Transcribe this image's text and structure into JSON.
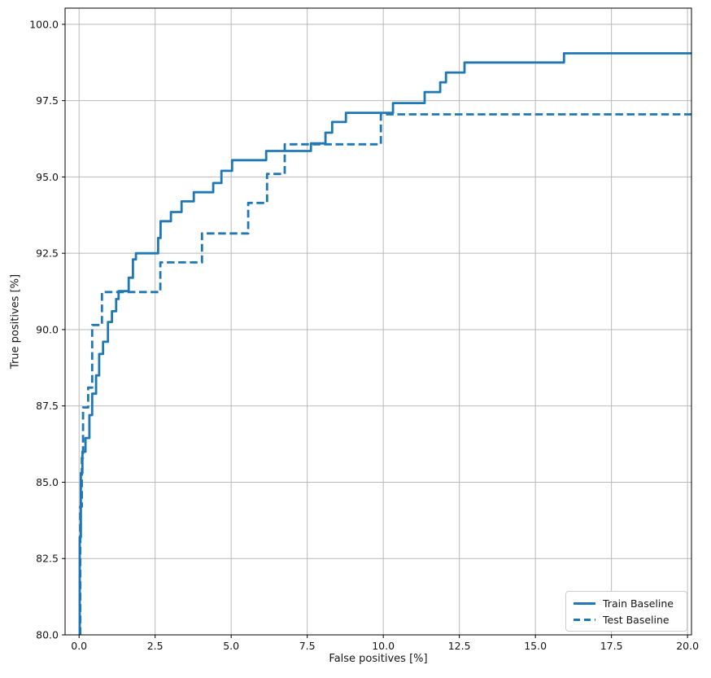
{
  "chart_data": {
    "type": "line",
    "subtype": "roc-step-curves",
    "title": "",
    "xlabel": "False positives [%]",
    "ylabel": "True positives [%]",
    "xlim": [
      -0.46,
      20.13
    ],
    "ylim": [
      80.0,
      100.53
    ],
    "x_ticks": [
      0.0,
      2.5,
      5.0,
      7.5,
      10.0,
      12.5,
      15.0,
      17.5,
      20.0
    ],
    "x_tick_labels": [
      "0.0",
      "2.5",
      "5.0",
      "7.5",
      "10.0",
      "12.5",
      "15.0",
      "17.5",
      "20.0"
    ],
    "y_ticks": [
      80.0,
      82.5,
      85.0,
      87.5,
      90.0,
      92.5,
      95.0,
      97.5,
      100.0
    ],
    "y_tick_labels": [
      "80.0",
      "82.5",
      "85.0",
      "87.5",
      "90.0",
      "92.5",
      "95.0",
      "97.5",
      "100.0"
    ],
    "grid": true,
    "grid_color": "#b9b9b9",
    "axis_color": "#000000",
    "line_color": "#1f77b4",
    "legend": {
      "position": "lower right",
      "entries": [
        {
          "label": "Train Baseline",
          "style": "solid",
          "color": "#1f77b4"
        },
        {
          "label": "Test Baseline",
          "style": "dashed",
          "color": "#1f77b4"
        }
      ]
    },
    "series": [
      {
        "name": "Train Baseline",
        "style": "solid",
        "color": "#1f77b4",
        "points": [
          [
            0.02,
            80.0
          ],
          [
            0.02,
            83.2
          ],
          [
            0.06,
            83.2
          ],
          [
            0.06,
            85.3
          ],
          [
            0.11,
            85.3
          ],
          [
            0.11,
            86.0
          ],
          [
            0.21,
            86.0
          ],
          [
            0.21,
            86.45
          ],
          [
            0.34,
            86.45
          ],
          [
            0.34,
            87.2
          ],
          [
            0.43,
            87.2
          ],
          [
            0.43,
            87.9
          ],
          [
            0.56,
            87.9
          ],
          [
            0.56,
            88.5
          ],
          [
            0.66,
            88.5
          ],
          [
            0.66,
            89.2
          ],
          [
            0.79,
            89.2
          ],
          [
            0.79,
            89.6
          ],
          [
            0.95,
            89.6
          ],
          [
            0.95,
            90.25
          ],
          [
            1.08,
            90.25
          ],
          [
            1.08,
            90.6
          ],
          [
            1.22,
            90.6
          ],
          [
            1.22,
            91.0
          ],
          [
            1.3,
            91.0
          ],
          [
            1.3,
            91.26
          ],
          [
            1.63,
            91.26
          ],
          [
            1.63,
            91.7
          ],
          [
            1.77,
            91.7
          ],
          [
            1.77,
            92.3
          ],
          [
            1.87,
            92.3
          ],
          [
            1.87,
            92.5
          ],
          [
            2.6,
            92.5
          ],
          [
            2.6,
            93.0
          ],
          [
            2.68,
            93.0
          ],
          [
            2.68,
            93.55
          ],
          [
            3.02,
            93.55
          ],
          [
            3.02,
            93.85
          ],
          [
            3.37,
            93.85
          ],
          [
            3.37,
            94.2
          ],
          [
            3.77,
            94.2
          ],
          [
            3.77,
            94.5
          ],
          [
            4.41,
            94.5
          ],
          [
            4.41,
            94.8
          ],
          [
            4.68,
            94.8
          ],
          [
            4.68,
            95.2
          ],
          [
            5.03,
            95.2
          ],
          [
            5.03,
            95.55
          ],
          [
            6.15,
            95.55
          ],
          [
            6.15,
            95.85
          ],
          [
            7.62,
            95.85
          ],
          [
            7.62,
            96.1
          ],
          [
            8.1,
            96.1
          ],
          [
            8.1,
            96.45
          ],
          [
            8.32,
            96.45
          ],
          [
            8.32,
            96.8
          ],
          [
            8.77,
            96.8
          ],
          [
            8.77,
            97.1
          ],
          [
            10.32,
            97.1
          ],
          [
            10.32,
            97.42
          ],
          [
            11.36,
            97.42
          ],
          [
            11.36,
            97.78
          ],
          [
            11.87,
            97.78
          ],
          [
            11.87,
            98.1
          ],
          [
            12.06,
            98.1
          ],
          [
            12.06,
            98.42
          ],
          [
            12.67,
            98.42
          ],
          [
            12.67,
            98.75
          ],
          [
            15.94,
            98.75
          ],
          [
            15.94,
            99.05
          ],
          [
            20.13,
            99.05
          ]
        ]
      },
      {
        "name": "Test Baseline",
        "style": "dashed",
        "color": "#1f77b4",
        "points": [
          [
            0.04,
            80.0
          ],
          [
            0.04,
            84.2
          ],
          [
            0.09,
            84.2
          ],
          [
            0.09,
            85.8
          ],
          [
            0.13,
            85.8
          ],
          [
            0.13,
            87.45
          ],
          [
            0.3,
            87.45
          ],
          [
            0.3,
            88.1
          ],
          [
            0.43,
            88.1
          ],
          [
            0.43,
            90.15
          ],
          [
            0.75,
            90.15
          ],
          [
            0.75,
            91.23
          ],
          [
            2.67,
            91.23
          ],
          [
            2.67,
            92.2
          ],
          [
            4.04,
            92.2
          ],
          [
            4.04,
            93.15
          ],
          [
            5.56,
            93.15
          ],
          [
            5.56,
            94.15
          ],
          [
            6.18,
            94.15
          ],
          [
            6.18,
            95.1
          ],
          [
            6.76,
            95.1
          ],
          [
            6.76,
            96.07
          ],
          [
            9.92,
            96.07
          ],
          [
            9.92,
            97.05
          ],
          [
            20.13,
            97.05
          ]
        ]
      }
    ]
  }
}
